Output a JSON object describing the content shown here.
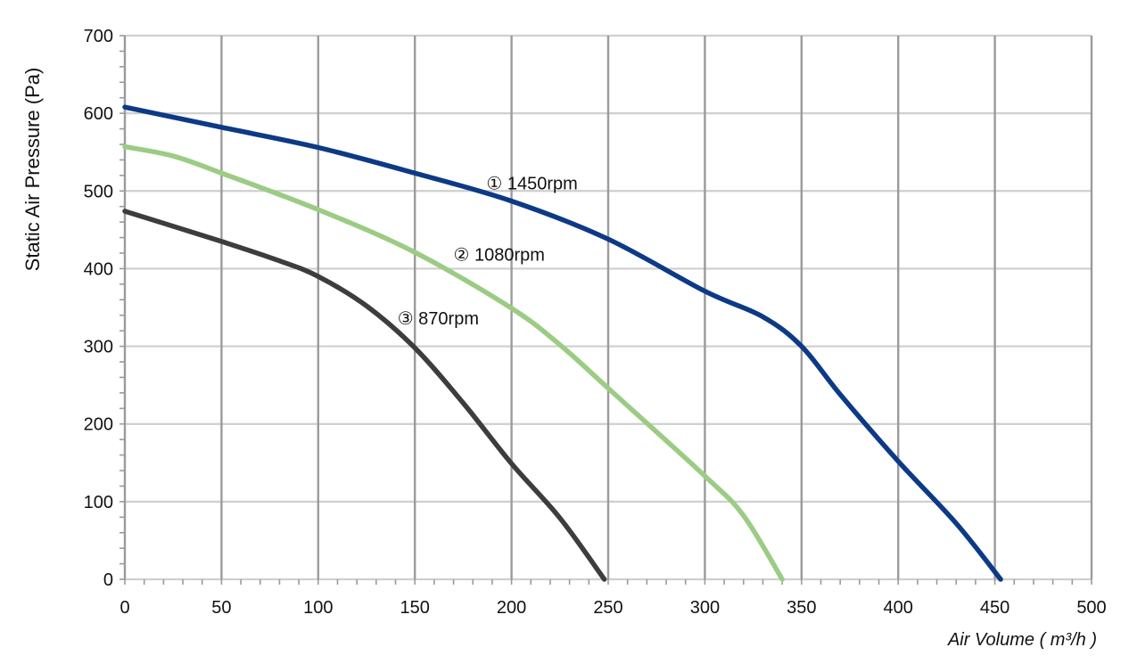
{
  "chart_data": {
    "type": "line",
    "xlabel": "Air Volume ( m³/h )",
    "ylabel": "Static Air Pressure  (Pa)",
    "xlim": [
      0,
      500
    ],
    "ylim": [
      0,
      700
    ],
    "x_ticks": [
      0,
      50,
      100,
      150,
      200,
      250,
      300,
      350,
      400,
      450,
      500
    ],
    "y_ticks": [
      0,
      100,
      200,
      300,
      400,
      500,
      600,
      700
    ],
    "grid": true,
    "legend": "none",
    "series": [
      {
        "name": "① 1450rpm",
        "color": "#0d3a86",
        "label_at": [
          187,
          502
        ],
        "points": [
          [
            0,
            608
          ],
          [
            50,
            582
          ],
          [
            100,
            556
          ],
          [
            150,
            523
          ],
          [
            200,
            487
          ],
          [
            250,
            438
          ],
          [
            300,
            371
          ],
          [
            330,
            338
          ],
          [
            350,
            300
          ],
          [
            370,
            238
          ],
          [
            400,
            152
          ],
          [
            430,
            72
          ],
          [
            453,
            0
          ]
        ]
      },
      {
        "name": "② 1080rpm",
        "color": "#9ccc84",
        "label_at": [
          170,
          410
        ],
        "points": [
          [
            0,
            557
          ],
          [
            25,
            545
          ],
          [
            50,
            523
          ],
          [
            100,
            476
          ],
          [
            150,
            421
          ],
          [
            200,
            349
          ],
          [
            225,
            302
          ],
          [
            250,
            246
          ],
          [
            300,
            133
          ],
          [
            320,
            82
          ],
          [
            340,
            0
          ]
        ]
      },
      {
        "name": "③ 870rpm",
        "color": "#3d3d3d",
        "label_at": [
          141,
          328
        ],
        "points": [
          [
            0,
            474
          ],
          [
            50,
            435
          ],
          [
            80,
            410
          ],
          [
            100,
            390
          ],
          [
            125,
            352
          ],
          [
            150,
            298
          ],
          [
            175,
            227
          ],
          [
            200,
            149
          ],
          [
            225,
            79
          ],
          [
            248,
            0
          ]
        ]
      }
    ]
  }
}
